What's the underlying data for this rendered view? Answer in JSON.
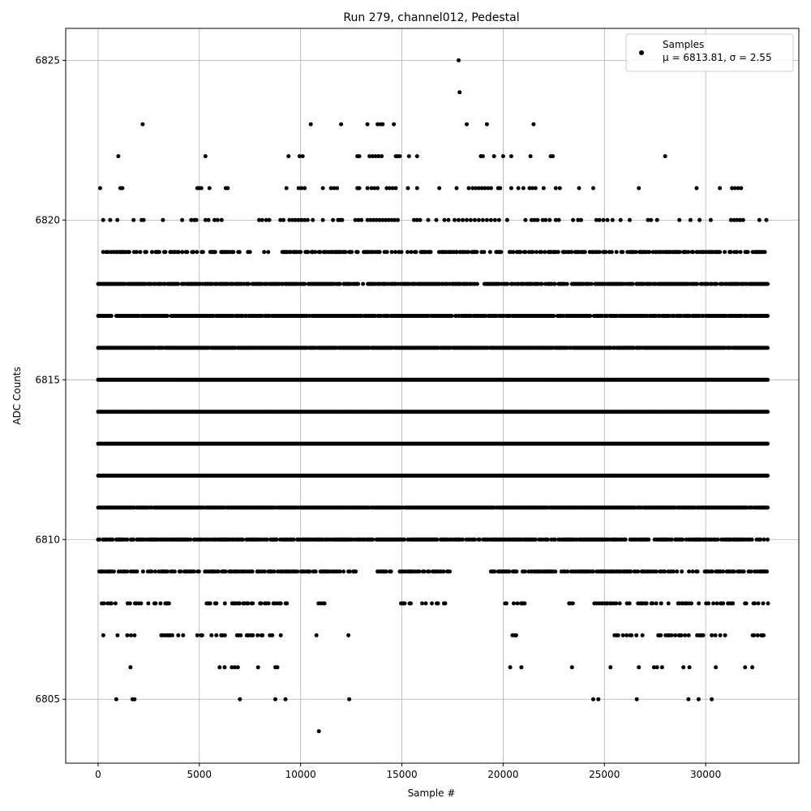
{
  "chart_data": {
    "type": "scatter",
    "title": "Run 279, channel012, Pedestal",
    "xlabel": "Sample #",
    "ylabel": "ADC Counts",
    "xlim": [
      -1600,
      34600
    ],
    "ylim": [
      6803,
      6826
    ],
    "xticks": [
      0,
      5000,
      10000,
      15000,
      20000,
      25000,
      30000
    ],
    "yticks": [
      6805,
      6810,
      6815,
      6820,
      6825
    ],
    "grid": true,
    "legend_position": "top-right",
    "marker_color": "#000000",
    "series": [
      {
        "name": "Samples",
        "stats_label": "μ = 6813.81, σ = 2.55",
        "points": [
          [
            17800,
            6825
          ],
          [
            17850,
            6824
          ],
          [
            2200,
            6823
          ],
          [
            10500,
            6823
          ],
          [
            12000,
            6823
          ],
          [
            13300,
            6823
          ],
          [
            13800,
            6823
          ],
          [
            13950,
            6823
          ],
          [
            14050,
            6823
          ],
          [
            14600,
            6823
          ],
          [
            18200,
            6823
          ],
          [
            19200,
            6823
          ],
          [
            21500,
            6823
          ],
          [
            1000,
            6822
          ],
          [
            5300,
            6822
          ],
          [
            9400,
            6822
          ],
          [
            9950,
            6822
          ],
          [
            10100,
            6822
          ],
          [
            12800,
            6822
          ],
          [
            12900,
            6822
          ],
          [
            13400,
            6822
          ],
          [
            13550,
            6822
          ],
          [
            13700,
            6822
          ],
          [
            13850,
            6822
          ],
          [
            14000,
            6822
          ],
          [
            14700,
            6822
          ],
          [
            14800,
            6822
          ],
          [
            14900,
            6822
          ],
          [
            15350,
            6822
          ],
          [
            15750,
            6822
          ],
          [
            18900,
            6822
          ],
          [
            19000,
            6822
          ],
          [
            19550,
            6822
          ],
          [
            20000,
            6822
          ],
          [
            20400,
            6822
          ],
          [
            21350,
            6822
          ],
          [
            22350,
            6822
          ],
          [
            22450,
            6822
          ],
          [
            28000,
            6822
          ],
          [
            100,
            6821
          ],
          [
            1100,
            6821
          ],
          [
            1200,
            6821
          ],
          [
            4900,
            6821
          ],
          [
            5000,
            6821
          ],
          [
            5100,
            6821
          ],
          [
            5500,
            6821
          ],
          [
            6300,
            6821
          ],
          [
            6400,
            6821
          ],
          [
            9300,
            6821
          ],
          [
            9900,
            6821
          ],
          [
            10050,
            6821
          ],
          [
            10200,
            6821
          ],
          [
            11100,
            6821
          ],
          [
            11500,
            6821
          ],
          [
            11650,
            6821
          ],
          [
            11800,
            6821
          ],
          [
            12800,
            6821
          ],
          [
            12900,
            6821
          ],
          [
            13300,
            6821
          ],
          [
            13500,
            6821
          ],
          [
            13650,
            6821
          ],
          [
            13800,
            6821
          ],
          [
            14250,
            6821
          ],
          [
            14400,
            6821
          ],
          [
            14550,
            6821
          ],
          [
            14700,
            6821
          ],
          [
            15300,
            6821
          ],
          [
            15750,
            6821
          ],
          [
            16850,
            6821
          ],
          [
            17700,
            6821
          ],
          [
            18300,
            6821
          ],
          [
            18500,
            6821
          ],
          [
            18650,
            6821
          ],
          [
            18800,
            6821
          ],
          [
            18950,
            6821
          ],
          [
            19100,
            6821
          ],
          [
            19250,
            6821
          ],
          [
            19400,
            6821
          ],
          [
            19750,
            6821
          ],
          [
            19850,
            6821
          ],
          [
            20400,
            6821
          ],
          [
            20750,
            6821
          ],
          [
            21000,
            6821
          ],
          [
            21300,
            6821
          ],
          [
            21450,
            6821
          ],
          [
            21600,
            6821
          ],
          [
            22000,
            6821
          ],
          [
            22600,
            6821
          ],
          [
            22800,
            6821
          ],
          [
            23750,
            6821
          ],
          [
            24450,
            6821
          ],
          [
            26700,
            6821
          ],
          [
            29550,
            6821
          ],
          [
            30700,
            6821
          ],
          [
            31300,
            6821
          ],
          [
            31450,
            6821
          ],
          [
            31600,
            6821
          ],
          [
            31750,
            6821
          ],
          [
            250,
            6820
          ],
          [
            600,
            6820
          ],
          [
            950,
            6820
          ],
          [
            1750,
            6820
          ],
          [
            2150,
            6820
          ],
          [
            2250,
            6820
          ],
          [
            3200,
            6820
          ],
          [
            4150,
            6820
          ],
          [
            4600,
            6820
          ],
          [
            4750,
            6820
          ],
          [
            4850,
            6820
          ],
          [
            5300,
            6820
          ],
          [
            5450,
            6820
          ],
          [
            5750,
            6820
          ],
          [
            5900,
            6820
          ],
          [
            6100,
            6820
          ],
          [
            7950,
            6820
          ],
          [
            8100,
            6820
          ],
          [
            8300,
            6820
          ],
          [
            8450,
            6820
          ],
          [
            9000,
            6820
          ],
          [
            9150,
            6820
          ],
          [
            9450,
            6820
          ],
          [
            9600,
            6820
          ],
          [
            9750,
            6820
          ],
          [
            9900,
            6820
          ],
          [
            10050,
            6820
          ],
          [
            10200,
            6820
          ],
          [
            10350,
            6820
          ],
          [
            10600,
            6820
          ],
          [
            11100,
            6820
          ],
          [
            11600,
            6820
          ],
          [
            11850,
            6820
          ],
          [
            11950,
            6820
          ],
          [
            12050,
            6820
          ],
          [
            12700,
            6820
          ],
          [
            12850,
            6820
          ],
          [
            13000,
            6820
          ],
          [
            13300,
            6820
          ],
          [
            13450,
            6820
          ],
          [
            13600,
            6820
          ],
          [
            13750,
            6820
          ],
          [
            13900,
            6820
          ],
          [
            14050,
            6820
          ],
          [
            14200,
            6820
          ],
          [
            14350,
            6820
          ],
          [
            14500,
            6820
          ],
          [
            14650,
            6820
          ],
          [
            14800,
            6820
          ],
          [
            15600,
            6820
          ],
          [
            15750,
            6820
          ],
          [
            15900,
            6820
          ],
          [
            16300,
            6820
          ],
          [
            16700,
            6820
          ],
          [
            17100,
            6820
          ],
          [
            17300,
            6820
          ],
          [
            17600,
            6820
          ],
          [
            17800,
            6820
          ],
          [
            18000,
            6820
          ],
          [
            18200,
            6820
          ],
          [
            18400,
            6820
          ],
          [
            18600,
            6820
          ],
          [
            18800,
            6820
          ],
          [
            19000,
            6820
          ],
          [
            19200,
            6820
          ],
          [
            19400,
            6820
          ],
          [
            19600,
            6820
          ],
          [
            19800,
            6820
          ],
          [
            20200,
            6820
          ],
          [
            21100,
            6820
          ],
          [
            21400,
            6820
          ],
          [
            21550,
            6820
          ],
          [
            21700,
            6820
          ],
          [
            21950,
            6820
          ],
          [
            22100,
            6820
          ],
          [
            22300,
            6820
          ],
          [
            22600,
            6820
          ],
          [
            22750,
            6820
          ],
          [
            23450,
            6820
          ],
          [
            23700,
            6820
          ],
          [
            23850,
            6820
          ],
          [
            24600,
            6820
          ],
          [
            24750,
            6820
          ],
          [
            24950,
            6820
          ],
          [
            25150,
            6820
          ],
          [
            25400,
            6820
          ],
          [
            25800,
            6820
          ],
          [
            26250,
            6820
          ],
          [
            27150,
            6820
          ],
          [
            27300,
            6820
          ],
          [
            27600,
            6820
          ],
          [
            28700,
            6820
          ],
          [
            29250,
            6820
          ],
          [
            29700,
            6820
          ],
          [
            30250,
            6820
          ],
          [
            31250,
            6820
          ],
          [
            31400,
            6820
          ],
          [
            31550,
            6820
          ],
          [
            31700,
            6820
          ],
          [
            31850,
            6820
          ],
          [
            32650,
            6820
          ],
          [
            33000,
            6820
          ],
          [
            250,
            6819
          ],
          [
            500,
            6819
          ],
          [
            28900,
            6819
          ],
          [
            32800,
            6819
          ],
          [
            7400,
            6819
          ],
          [
            7500,
            6819
          ],
          [
            8200,
            6819
          ],
          [
            8400,
            6819
          ],
          [
            9500,
            6819
          ],
          [
            10600,
            6819
          ],
          [
            17700,
            6819
          ],
          [
            900,
            6805
          ],
          [
            1700,
            6805
          ],
          [
            1800,
            6805
          ],
          [
            7000,
            6805
          ],
          [
            8750,
            6805
          ],
          [
            9250,
            6805
          ],
          [
            12400,
            6805
          ],
          [
            24450,
            6805
          ],
          [
            24700,
            6805
          ],
          [
            26600,
            6805
          ],
          [
            29150,
            6805
          ],
          [
            29650,
            6805
          ],
          [
            30300,
            6805
          ],
          [
            1600,
            6806
          ],
          [
            6000,
            6806
          ],
          [
            6250,
            6806
          ],
          [
            6600,
            6806
          ],
          [
            6750,
            6806
          ],
          [
            6900,
            6806
          ],
          [
            7900,
            6806
          ],
          [
            8750,
            6806
          ],
          [
            8850,
            6806
          ],
          [
            20350,
            6806
          ],
          [
            20900,
            6806
          ],
          [
            23400,
            6806
          ],
          [
            25300,
            6806
          ],
          [
            26700,
            6806
          ],
          [
            27450,
            6806
          ],
          [
            27600,
            6806
          ],
          [
            27850,
            6806
          ],
          [
            28900,
            6806
          ],
          [
            29200,
            6806
          ],
          [
            30500,
            6806
          ],
          [
            31950,
            6806
          ],
          [
            32300,
            6806
          ],
          [
            10900,
            6804
          ]
        ]
      }
    ],
    "dense_levels": [
      {
        "y": 6819,
        "ranges": [
          [
            400,
            2400
          ],
          [
            2600,
            7000
          ],
          [
            9100,
            33100
          ]
        ],
        "density": 0.55
      },
      {
        "y": 6818,
        "ranges": [
          [
            0,
            33100
          ]
        ],
        "density": 0.8
      },
      {
        "y": 6817,
        "ranges": [
          [
            0,
            33100
          ]
        ],
        "density": 0.92
      },
      {
        "y": 6816,
        "ranges": [
          [
            0,
            33100
          ]
        ],
        "density": 0.97
      },
      {
        "y": 6815,
        "ranges": [
          [
            0,
            33100
          ]
        ],
        "density": 1.0
      },
      {
        "y": 6814,
        "ranges": [
          [
            0,
            33100
          ]
        ],
        "density": 1.0
      },
      {
        "y": 6813,
        "ranges": [
          [
            0,
            33100
          ]
        ],
        "density": 1.0
      },
      {
        "y": 6812,
        "ranges": [
          [
            0,
            33100
          ]
        ],
        "density": 1.0
      },
      {
        "y": 6811,
        "ranges": [
          [
            0,
            33100
          ]
        ],
        "density": 0.97
      },
      {
        "y": 6810,
        "ranges": [
          [
            0,
            33100
          ]
        ],
        "density": 0.8
      },
      {
        "y": 6809,
        "ranges": [
          [
            0,
            12800
          ],
          [
            13800,
            14500
          ],
          [
            14900,
            17400
          ],
          [
            19400,
            33100
          ]
        ],
        "density": 0.6
      },
      {
        "y": 6808,
        "ranges": [
          [
            0,
            700
          ],
          [
            800,
            3600
          ],
          [
            5300,
            9400
          ],
          [
            10700,
            11600
          ],
          [
            14900,
            15700
          ],
          [
            16000,
            17300
          ],
          [
            20100,
            21300
          ],
          [
            23200,
            23500
          ],
          [
            24500,
            33100
          ]
        ],
        "density": 0.4
      },
      {
        "y": 6807,
        "ranges": [
          [
            200,
            300
          ],
          [
            900,
            1900
          ],
          [
            3000,
            4300
          ],
          [
            4900,
            5200
          ],
          [
            5600,
            9200
          ],
          [
            10600,
            11100
          ],
          [
            12300,
            12600
          ],
          [
            16500,
            16900
          ],
          [
            20400,
            21100
          ],
          [
            23200,
            23500
          ],
          [
            25500,
            31000
          ],
          [
            31600,
            33000
          ]
        ],
        "density": 0.3
      }
    ]
  }
}
